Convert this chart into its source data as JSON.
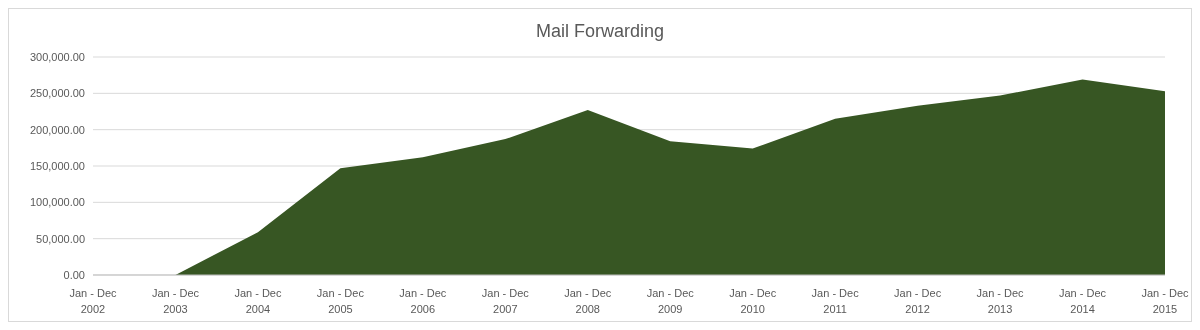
{
  "chart_data": {
    "type": "area",
    "title": "Mail Forwarding",
    "categories": [
      "Jan - Dec 2002",
      "Jan - Dec 2003",
      "Jan - Dec 2004",
      "Jan - Dec 2005",
      "Jan - Dec 2006",
      "Jan - Dec 2007",
      "Jan - Dec 2008",
      "Jan - Dec 2009",
      "Jan - Dec 2010",
      "Jan - Dec 2011",
      "Jan - Dec 2012",
      "Jan - Dec 2013",
      "Jan - Dec 2014",
      "Jan - Dec 2015"
    ],
    "values": [
      0,
      0,
      59000,
      147000,
      162000,
      187000,
      227000,
      184000,
      174000,
      215000,
      233000,
      247000,
      269000,
      253000
    ],
    "color": "#375623",
    "ylim": [
      0,
      300000
    ],
    "yticks": [
      {
        "value": 0,
        "label": "0.00"
      },
      {
        "value": 50000,
        "label": "50,000.00"
      },
      {
        "value": 100000,
        "label": "100,000.00"
      },
      {
        "value": 150000,
        "label": "150,000.00"
      },
      {
        "value": 200000,
        "label": "200,000.00"
      },
      {
        "value": 250000,
        "label": "250,000.00"
      },
      {
        "value": 300000,
        "label": "300,000.00"
      }
    ],
    "grid": "y",
    "legend": false
  }
}
